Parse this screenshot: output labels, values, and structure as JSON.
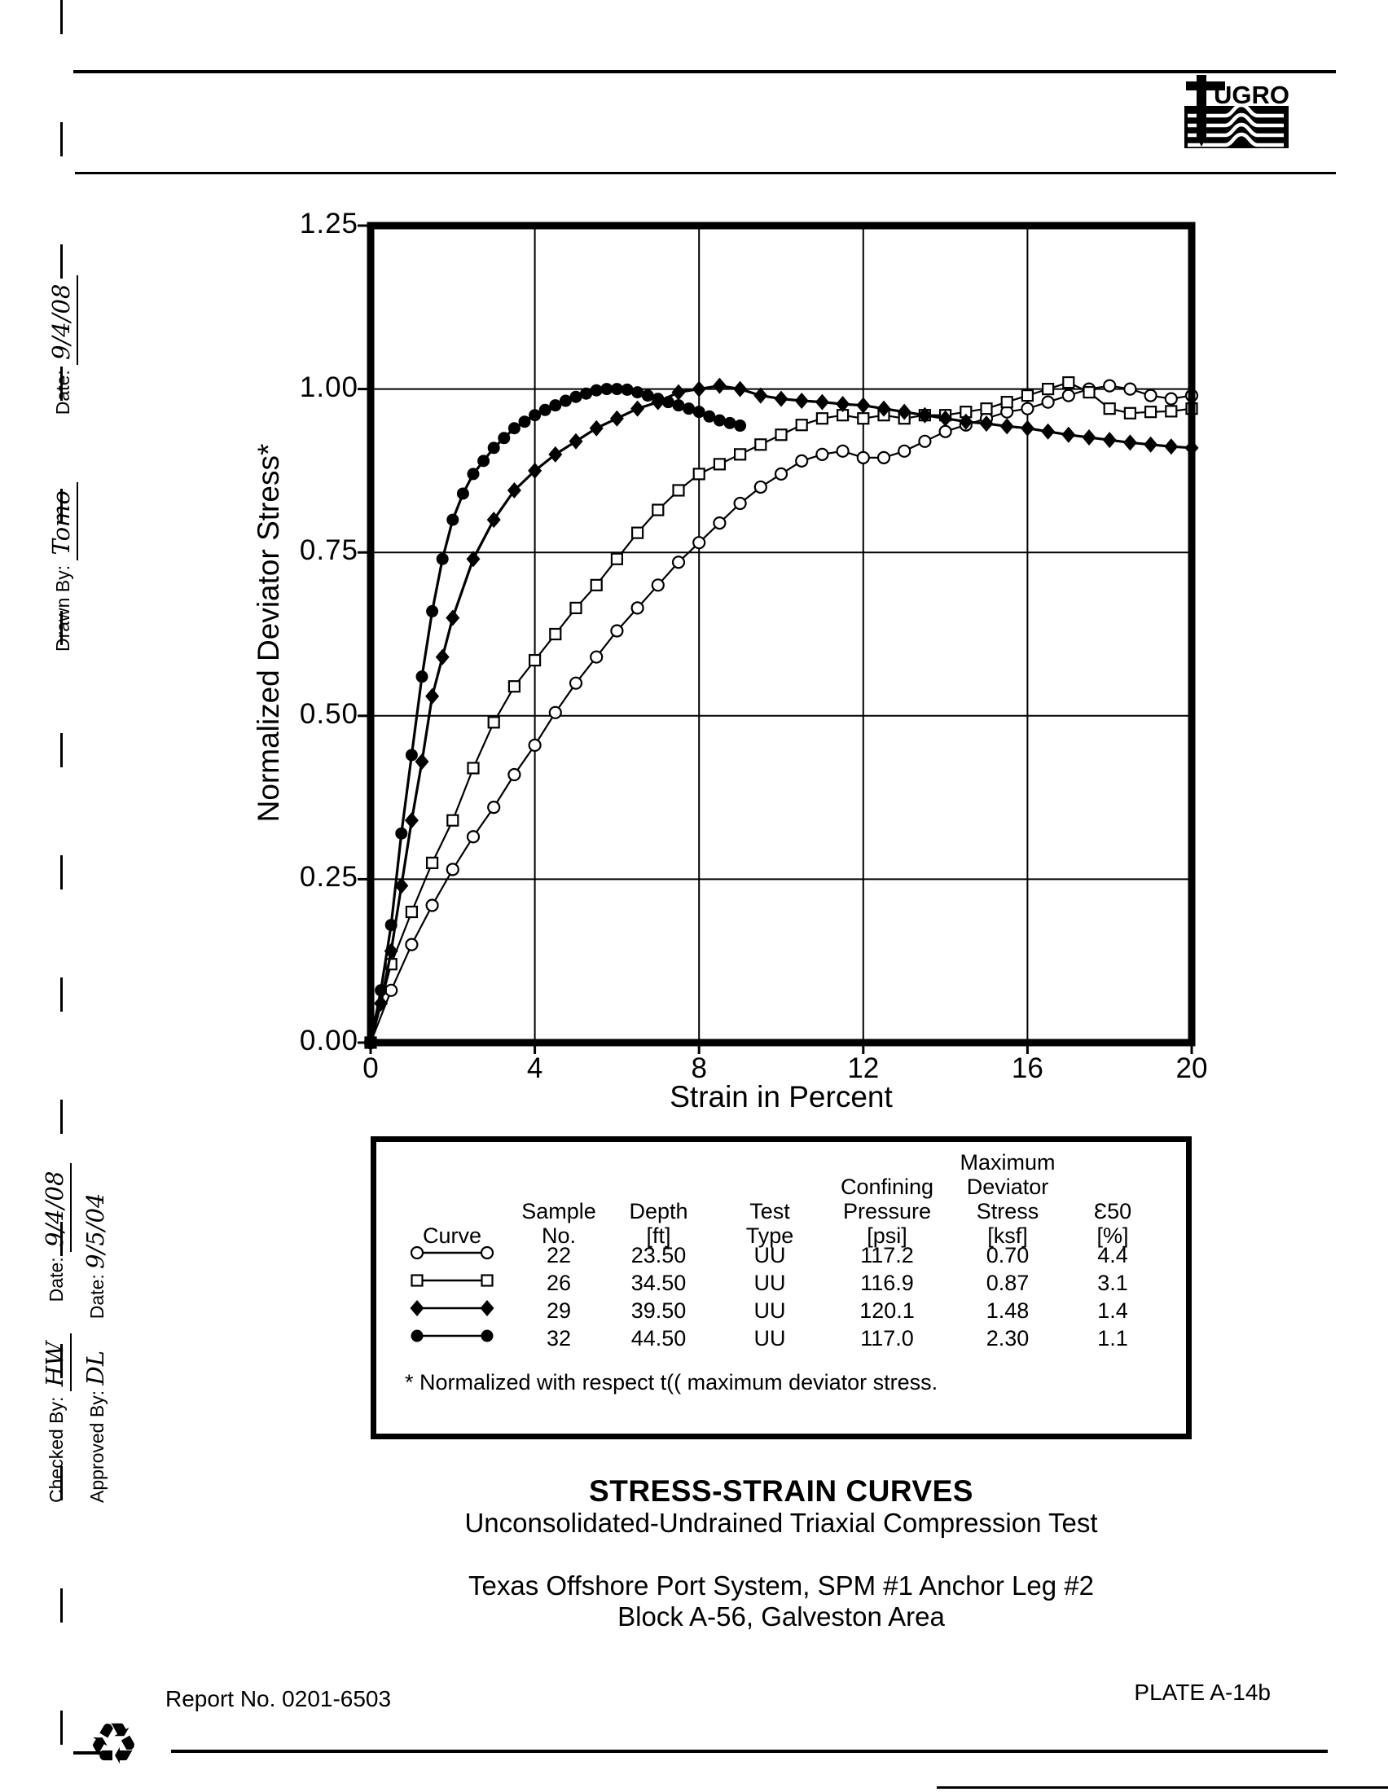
{
  "header": {
    "logo_text": "UGRO"
  },
  "margin": {
    "drawn_by_label": "Drawn By:",
    "drawn_by_signature": "Tomo",
    "drawn_date_label": "Date:",
    "drawn_date": "9/4/08",
    "checked_by_label": "Checked By:",
    "checked_by_signature": "HW",
    "checked_date_label": "Date:",
    "checked_date": "9/4/08",
    "approved_by_label": "Approved By:",
    "approved_by_signature": "DL",
    "approved_date_label": "Date:",
    "approved_date": "9/5/04",
    "recycle_icon": "♻"
  },
  "chart_data": {
    "type": "line",
    "xlabel": "Strain in Percent",
    "ylabel": "Normalized Deviator Stress*",
    "xlim": [
      0,
      20
    ],
    "ylim": [
      0,
      1.25
    ],
    "grid": {
      "x": [
        4,
        8,
        12,
        16
      ],
      "y": [
        0.25,
        0.5,
        0.75,
        1.0
      ]
    },
    "xticks": [
      {
        "v": 0,
        "label": "0"
      },
      {
        "v": 4,
        "label": "4"
      },
      {
        "v": 8,
        "label": "8"
      },
      {
        "v": 12,
        "label": "12"
      },
      {
        "v": 16,
        "label": "16"
      },
      {
        "v": 20,
        "label": "20"
      }
    ],
    "yticks": [
      {
        "v": 0,
        "label": "0.00"
      },
      {
        "v": 0.25,
        "label": "0.25"
      },
      {
        "v": 0.5,
        "label": "0.50"
      },
      {
        "v": 0.75,
        "label": "0.75"
      },
      {
        "v": 1.0,
        "label": "1.00"
      },
      {
        "v": 1.25,
        "label": "1.25"
      }
    ],
    "series": [
      {
        "name": "Sample 22",
        "marker": "open-circle",
        "line_width": 2.2,
        "points": [
          [
            0,
            0
          ],
          [
            0.5,
            0.08
          ],
          [
            1,
            0.15
          ],
          [
            1.5,
            0.21
          ],
          [
            2,
            0.265
          ],
          [
            2.5,
            0.315
          ],
          [
            3,
            0.36
          ],
          [
            3.5,
            0.41
          ],
          [
            4,
            0.455
          ],
          [
            4.5,
            0.505
          ],
          [
            5,
            0.55
          ],
          [
            5.5,
            0.59
          ],
          [
            6,
            0.63
          ],
          [
            6.5,
            0.665
          ],
          [
            7,
            0.7
          ],
          [
            7.5,
            0.735
          ],
          [
            8,
            0.765
          ],
          [
            8.5,
            0.795
          ],
          [
            9,
            0.825
          ],
          [
            9.5,
            0.85
          ],
          [
            10,
            0.87
          ],
          [
            10.5,
            0.89
          ],
          [
            11,
            0.9
          ],
          [
            11.5,
            0.905
          ],
          [
            12,
            0.895
          ],
          [
            12.5,
            0.895
          ],
          [
            13,
            0.905
          ],
          [
            13.5,
            0.92
          ],
          [
            14,
            0.935
          ],
          [
            14.5,
            0.945
          ],
          [
            15,
            0.955
          ],
          [
            15.5,
            0.965
          ],
          [
            16,
            0.97
          ],
          [
            16.5,
            0.98
          ],
          [
            17,
            0.99
          ],
          [
            17.5,
            1.0
          ],
          [
            18,
            1.005
          ],
          [
            18.5,
            1.0
          ],
          [
            19,
            0.99
          ],
          [
            19.5,
            0.985
          ],
          [
            20,
            0.99
          ]
        ]
      },
      {
        "name": "Sample 26",
        "marker": "open-square",
        "line_width": 2.2,
        "points": [
          [
            0,
            0
          ],
          [
            0.5,
            0.12
          ],
          [
            1,
            0.2
          ],
          [
            1.5,
            0.275
          ],
          [
            2,
            0.34
          ],
          [
            2.5,
            0.42
          ],
          [
            3,
            0.49
          ],
          [
            3.5,
            0.545
          ],
          [
            4,
            0.585
          ],
          [
            4.5,
            0.625
          ],
          [
            5,
            0.665
          ],
          [
            5.5,
            0.7
          ],
          [
            6,
            0.74
          ],
          [
            6.5,
            0.78
          ],
          [
            7,
            0.815
          ],
          [
            7.5,
            0.845
          ],
          [
            8,
            0.87
          ],
          [
            8.5,
            0.885
          ],
          [
            9,
            0.9
          ],
          [
            9.5,
            0.915
          ],
          [
            10,
            0.93
          ],
          [
            10.5,
            0.945
          ],
          [
            11,
            0.955
          ],
          [
            11.5,
            0.96
          ],
          [
            12,
            0.955
          ],
          [
            12.5,
            0.96
          ],
          [
            13,
            0.955
          ],
          [
            13.5,
            0.96
          ],
          [
            14,
            0.96
          ],
          [
            14.5,
            0.965
          ],
          [
            15,
            0.97
          ],
          [
            15.5,
            0.98
          ],
          [
            16,
            0.99
          ],
          [
            16.5,
            1.0
          ],
          [
            17,
            1.01
          ],
          [
            17.5,
            0.995
          ],
          [
            18,
            0.97
          ],
          [
            18.5,
            0.963
          ],
          [
            19,
            0.965
          ],
          [
            19.5,
            0.966
          ],
          [
            20,
            0.97
          ]
        ]
      },
      {
        "name": "Sample 29",
        "marker": "filled-diamond",
        "line_width": 3.2,
        "points": [
          [
            0,
            0
          ],
          [
            0.25,
            0.06
          ],
          [
            0.5,
            0.14
          ],
          [
            0.75,
            0.24
          ],
          [
            1,
            0.34
          ],
          [
            1.25,
            0.43
          ],
          [
            1.5,
            0.53
          ],
          [
            1.75,
            0.59
          ],
          [
            2,
            0.65
          ],
          [
            2.5,
            0.74
          ],
          [
            3,
            0.8
          ],
          [
            3.5,
            0.845
          ],
          [
            4,
            0.875
          ],
          [
            4.5,
            0.9
          ],
          [
            5,
            0.92
          ],
          [
            5.5,
            0.94
          ],
          [
            6,
            0.955
          ],
          [
            6.5,
            0.97
          ],
          [
            7,
            0.98
          ],
          [
            7.5,
            0.995
          ],
          [
            8,
            1.0
          ],
          [
            8.5,
            1.005
          ],
          [
            9,
            1.0
          ],
          [
            9.5,
            0.99
          ],
          [
            10,
            0.985
          ],
          [
            10.5,
            0.982
          ],
          [
            11,
            0.98
          ],
          [
            11.5,
            0.977
          ],
          [
            12,
            0.975
          ],
          [
            12.5,
            0.97
          ],
          [
            13,
            0.965
          ],
          [
            13.5,
            0.96
          ],
          [
            14,
            0.955
          ],
          [
            14.5,
            0.95
          ],
          [
            15,
            0.947
          ],
          [
            15.5,
            0.943
          ],
          [
            16,
            0.94
          ],
          [
            16.5,
            0.935
          ],
          [
            17,
            0.93
          ],
          [
            17.5,
            0.926
          ],
          [
            18,
            0.922
          ],
          [
            18.5,
            0.918
          ],
          [
            19,
            0.915
          ],
          [
            19.5,
            0.912
          ],
          [
            20,
            0.91
          ]
        ]
      },
      {
        "name": "Sample 32",
        "marker": "filled-circle",
        "line_width": 3.2,
        "points": [
          [
            0,
            0
          ],
          [
            0.25,
            0.08
          ],
          [
            0.5,
            0.18
          ],
          [
            0.75,
            0.32
          ],
          [
            1,
            0.44
          ],
          [
            1.25,
            0.56
          ],
          [
            1.5,
            0.66
          ],
          [
            1.75,
            0.74
          ],
          [
            2,
            0.8
          ],
          [
            2.25,
            0.84
          ],
          [
            2.5,
            0.87
          ],
          [
            2.75,
            0.89
          ],
          [
            3,
            0.91
          ],
          [
            3.25,
            0.925
          ],
          [
            3.5,
            0.94
          ],
          [
            3.75,
            0.95
          ],
          [
            4,
            0.96
          ],
          [
            4.25,
            0.968
          ],
          [
            4.5,
            0.975
          ],
          [
            4.75,
            0.982
          ],
          [
            5,
            0.988
          ],
          [
            5.25,
            0.993
          ],
          [
            5.5,
            0.998
          ],
          [
            5.75,
            1.0
          ],
          [
            6,
            1.0
          ],
          [
            6.25,
            0.999
          ],
          [
            6.5,
            0.995
          ],
          [
            6.75,
            0.99
          ],
          [
            7,
            0.985
          ],
          [
            7.25,
            0.98
          ],
          [
            7.5,
            0.975
          ],
          [
            7.75,
            0.97
          ],
          [
            8,
            0.965
          ],
          [
            8.25,
            0.958
          ],
          [
            8.5,
            0.952
          ],
          [
            8.75,
            0.948
          ],
          [
            9,
            0.944
          ]
        ]
      }
    ]
  },
  "legend": {
    "headers": [
      {
        "lines": [
          "Curve"
        ]
      },
      {
        "lines": [
          "Sample",
          "No."
        ]
      },
      {
        "lines": [
          "Depth",
          "[ft]"
        ]
      },
      {
        "lines": [
          "Test",
          "Type"
        ]
      },
      {
        "lines": [
          "Confining",
          "Pressure",
          "[psi]"
        ]
      },
      {
        "lines": [
          "Maximum",
          "Deviator",
          "Stress",
          "[ksf]"
        ]
      },
      {
        "lines": [
          "Ɛ50",
          "[%]"
        ]
      }
    ],
    "rows": [
      {
        "marker": "open-circle",
        "sample": "22",
        "depth": "23.50",
        "test": "UU",
        "pressure": "117.2",
        "stress": "0.70",
        "e50": "4.4"
      },
      {
        "marker": "open-square",
        "sample": "26",
        "depth": "34.50",
        "test": "UU",
        "pressure": "116.9",
        "stress": "0.87",
        "e50": "3.1"
      },
      {
        "marker": "filled-diamond",
        "sample": "29",
        "depth": "39.50",
        "test": "UU",
        "pressure": "120.1",
        "stress": "1.48",
        "e50": "1.4"
      },
      {
        "marker": "filled-circle",
        "sample": "32",
        "depth": "44.50",
        "test": "UU",
        "pressure": "117.0",
        "stress": "2.30",
        "e50": "1.1"
      }
    ],
    "footnote": "* Normalized with respect t(( maximum deviator stress."
  },
  "titles": {
    "main": "STRESS-STRAIN CURVES",
    "sub": "Unconsolidated-Undrained Triaxial Compression Test",
    "line3": "Texas Offshore Port System, SPM #1 Anchor Leg #2",
    "line4": "Block A-56, Galveston Area"
  },
  "footer": {
    "report_no": "Report No. 0201-6503",
    "plate": "PLATE A-14b"
  }
}
